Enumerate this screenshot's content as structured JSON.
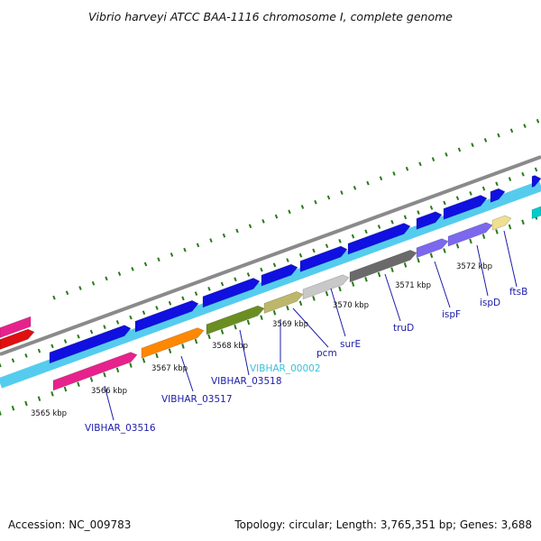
{
  "header": {
    "title": "Vibrio harveyi ATCC BAA-1116 chromosome I, complete genome"
  },
  "footer": {
    "accession": "Accession: NC_009783",
    "summary": "Topology: circular; Length: 3,765,351 bp; Genes: 3,688"
  },
  "map": {
    "kbp_labels": [
      "3565 kbp",
      "3566 kbp",
      "3567 kbp",
      "3568 kbp",
      "3569 kbp",
      "3570 kbp",
      "3571 kbp",
      "3572 kbp"
    ],
    "gene_labels": [
      {
        "text": "VIBHAR_03516",
        "color": "#1c1ca8"
      },
      {
        "text": "VIBHAR_03517",
        "color": "#1c1ca8"
      },
      {
        "text": "VIBHAR_03518",
        "color": "#1c1ca8"
      },
      {
        "text": "VIBHAR_00002",
        "color": "#3bbfd8"
      },
      {
        "text": "pcm",
        "color": "#1c1ca8"
      },
      {
        "text": "surE",
        "color": "#1c1ca8"
      },
      {
        "text": "truD",
        "color": "#1c1ca8"
      },
      {
        "text": "ispF",
        "color": "#1c1ca8"
      },
      {
        "text": "ispD",
        "color": "#1c1ca8"
      },
      {
        "text": "ftsB",
        "color": "#1c1ca8"
      }
    ],
    "colors": {
      "backbone": "#8a8a8a",
      "cds_forward": "#1010e0",
      "rna_band": "#55ccee",
      "tick": "#2a7a1a",
      "magenta": "#e8228c",
      "red": "#e01010",
      "orange": "#ff8800",
      "olive": "#6b8e23",
      "khaki": "#bdb76b",
      "lightgray": "#c8c8c8",
      "darkgray": "#6a6a6a",
      "purple": "#7b68ee",
      "paleyellow": "#eee090",
      "cyan": "#00cccc"
    }
  }
}
